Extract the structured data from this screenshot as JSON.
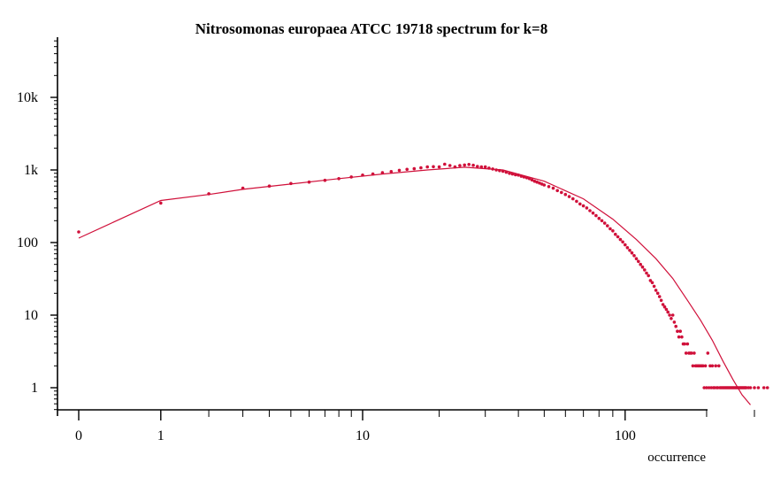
{
  "chart_data": {
    "type": "scatter",
    "title": "Nitrosomonas europaea ATCC 19718 spectrum for k=8",
    "xlabel": "occurrence",
    "ylabel": "",
    "x_scale": "log(1+x)",
    "y_scale": "log",
    "xlim": [
      0,
      340
    ],
    "ylim": [
      0.7,
      40000
    ],
    "x_ticks": [
      {
        "value": 0,
        "label": "0"
      },
      {
        "value": 1,
        "label": "1"
      },
      {
        "value": 10,
        "label": "10"
      },
      {
        "value": 100,
        "label": "100"
      }
    ],
    "y_ticks": [
      {
        "value": 1,
        "label": "1"
      },
      {
        "value": 10,
        "label": "10"
      },
      {
        "value": 100,
        "label": "100"
      },
      {
        "value": 1000,
        "label": "1k"
      },
      {
        "value": 10000,
        "label": "10k"
      }
    ],
    "grid": false,
    "color": "#d0103a",
    "series": [
      {
        "kind": "points",
        "x": [
          0,
          1,
          2,
          3,
          4,
          5,
          6,
          7,
          8,
          9,
          10,
          11,
          12,
          13,
          14,
          15,
          16,
          17,
          18,
          19,
          20,
          21,
          22,
          23,
          24,
          25,
          26,
          27,
          28,
          29,
          30,
          31,
          32,
          33,
          34,
          35,
          36,
          37,
          38,
          39,
          40,
          41,
          42,
          43,
          44,
          45,
          46,
          47,
          48,
          49,
          50,
          52,
          54,
          56,
          58,
          60,
          62,
          64,
          66,
          68,
          70,
          72,
          74,
          76,
          78,
          80,
          82,
          84,
          86,
          88,
          90,
          92,
          94,
          96,
          98,
          100,
          102,
          104,
          106,
          108,
          110,
          112,
          114,
          116,
          118,
          120,
          122,
          124,
          126,
          128,
          130,
          132,
          134,
          136,
          138,
          140,
          142,
          144,
          146,
          148,
          150,
          152,
          154,
          156,
          158,
          160,
          162,
          164,
          166,
          168,
          170,
          172,
          174,
          176,
          178,
          180,
          182,
          184,
          186,
          188,
          190,
          192,
          194,
          196,
          198,
          200,
          202,
          204,
          206,
          208,
          210,
          212,
          214,
          216,
          218,
          220,
          222,
          224,
          226,
          228,
          230,
          232,
          234,
          236,
          238,
          240,
          242,
          244,
          246,
          248,
          250,
          252,
          254,
          256,
          258,
          260,
          262,
          264,
          266,
          268,
          270,
          272,
          274,
          276,
          278,
          280,
          285,
          290,
          300,
          310,
          325,
          335
        ],
        "y": [
          140,
          350,
          470,
          560,
          600,
          650,
          680,
          720,
          760,
          800,
          850,
          880,
          920,
          950,
          990,
          1020,
          1040,
          1070,
          1100,
          1110,
          1100,
          1200,
          1150,
          1100,
          1150,
          1170,
          1190,
          1160,
          1120,
          1100,
          1100,
          1060,
          1030,
          1000,
          980,
          960,
          930,
          900,
          880,
          860,
          850,
          820,
          800,
          780,
          760,
          730,
          700,
          680,
          660,
          640,
          620,
          590,
          560,
          520,
          490,
          460,
          430,
          400,
          370,
          340,
          320,
          300,
          275,
          255,
          235,
          215,
          200,
          185,
          170,
          155,
          145,
          130,
          120,
          110,
          102,
          93,
          85,
          78,
          72,
          66,
          60,
          55,
          50,
          46,
          42,
          38,
          35,
          30,
          28,
          25,
          22,
          20,
          18,
          16,
          14,
          13,
          12,
          11,
          10,
          9,
          10,
          8,
          7,
          6,
          5,
          6,
          5,
          4,
          4,
          3,
          4,
          3,
          3,
          3,
          2,
          3,
          2,
          2,
          2,
          2,
          2,
          2,
          2,
          1,
          2,
          1,
          3,
          1,
          2,
          1,
          2,
          1,
          1,
          2,
          1,
          1,
          2,
          1,
          1,
          1,
          1,
          1,
          1,
          1,
          1,
          1,
          1,
          1,
          1,
          1,
          1,
          1,
          1,
          1,
          1,
          1,
          1,
          1,
          1,
          1,
          1,
          1,
          1,
          1,
          1,
          1,
          1,
          1,
          1,
          1,
          1,
          1
        ]
      },
      {
        "kind": "line",
        "x": [
          0,
          1,
          2,
          3,
          5,
          8,
          12,
          18,
          25,
          35,
          50,
          70,
          90,
          110,
          130,
          150,
          170,
          190,
          210,
          230,
          250,
          270,
          290
        ],
        "y": [
          115,
          380,
          460,
          540,
          640,
          760,
          880,
          1000,
          1090,
          1000,
          700,
          400,
          210,
          110,
          60,
          32,
          16,
          8.5,
          4.5,
          2.3,
          1.3,
          0.8,
          0.58
        ]
      }
    ]
  }
}
